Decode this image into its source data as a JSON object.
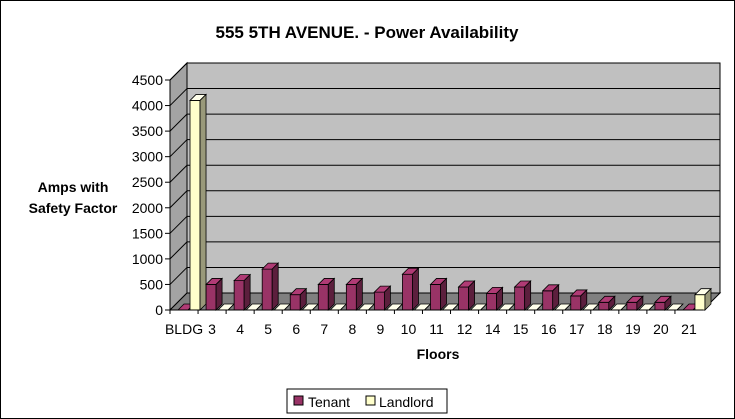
{
  "chart_data": {
    "type": "bar",
    "title": "555 5TH AVENUE. - Power Availability",
    "xlabel": "Floors",
    "ylabel_lines": [
      "Amps with",
      "Safety Factor"
    ],
    "ylim": [
      0,
      4500
    ],
    "ytick_step": 500,
    "categories": [
      "BLDG",
      "3",
      "4",
      "5",
      "6",
      "7",
      "8",
      "9",
      "10",
      "11",
      "12",
      "14",
      "15",
      "16",
      "17",
      "18",
      "19",
      "20",
      "21"
    ],
    "series": [
      {
        "name": "Tenant",
        "color": "#993366",
        "values": [
          0,
          500,
          575,
          800,
          300,
          500,
          500,
          350,
          700,
          500,
          450,
          325,
          450,
          375,
          275,
          150,
          150,
          150,
          0
        ]
      },
      {
        "name": "Landlord",
        "color": "#ffffcc",
        "values": [
          4100,
          0,
          0,
          0,
          0,
          0,
          0,
          0,
          0,
          0,
          0,
          0,
          0,
          0,
          0,
          0,
          0,
          0,
          300
        ]
      }
    ],
    "grid": true,
    "legend_position": "bottom"
  },
  "colors": {
    "plot_background": "#c0c0c0",
    "floor": "#808080",
    "grid": "#000000"
  }
}
